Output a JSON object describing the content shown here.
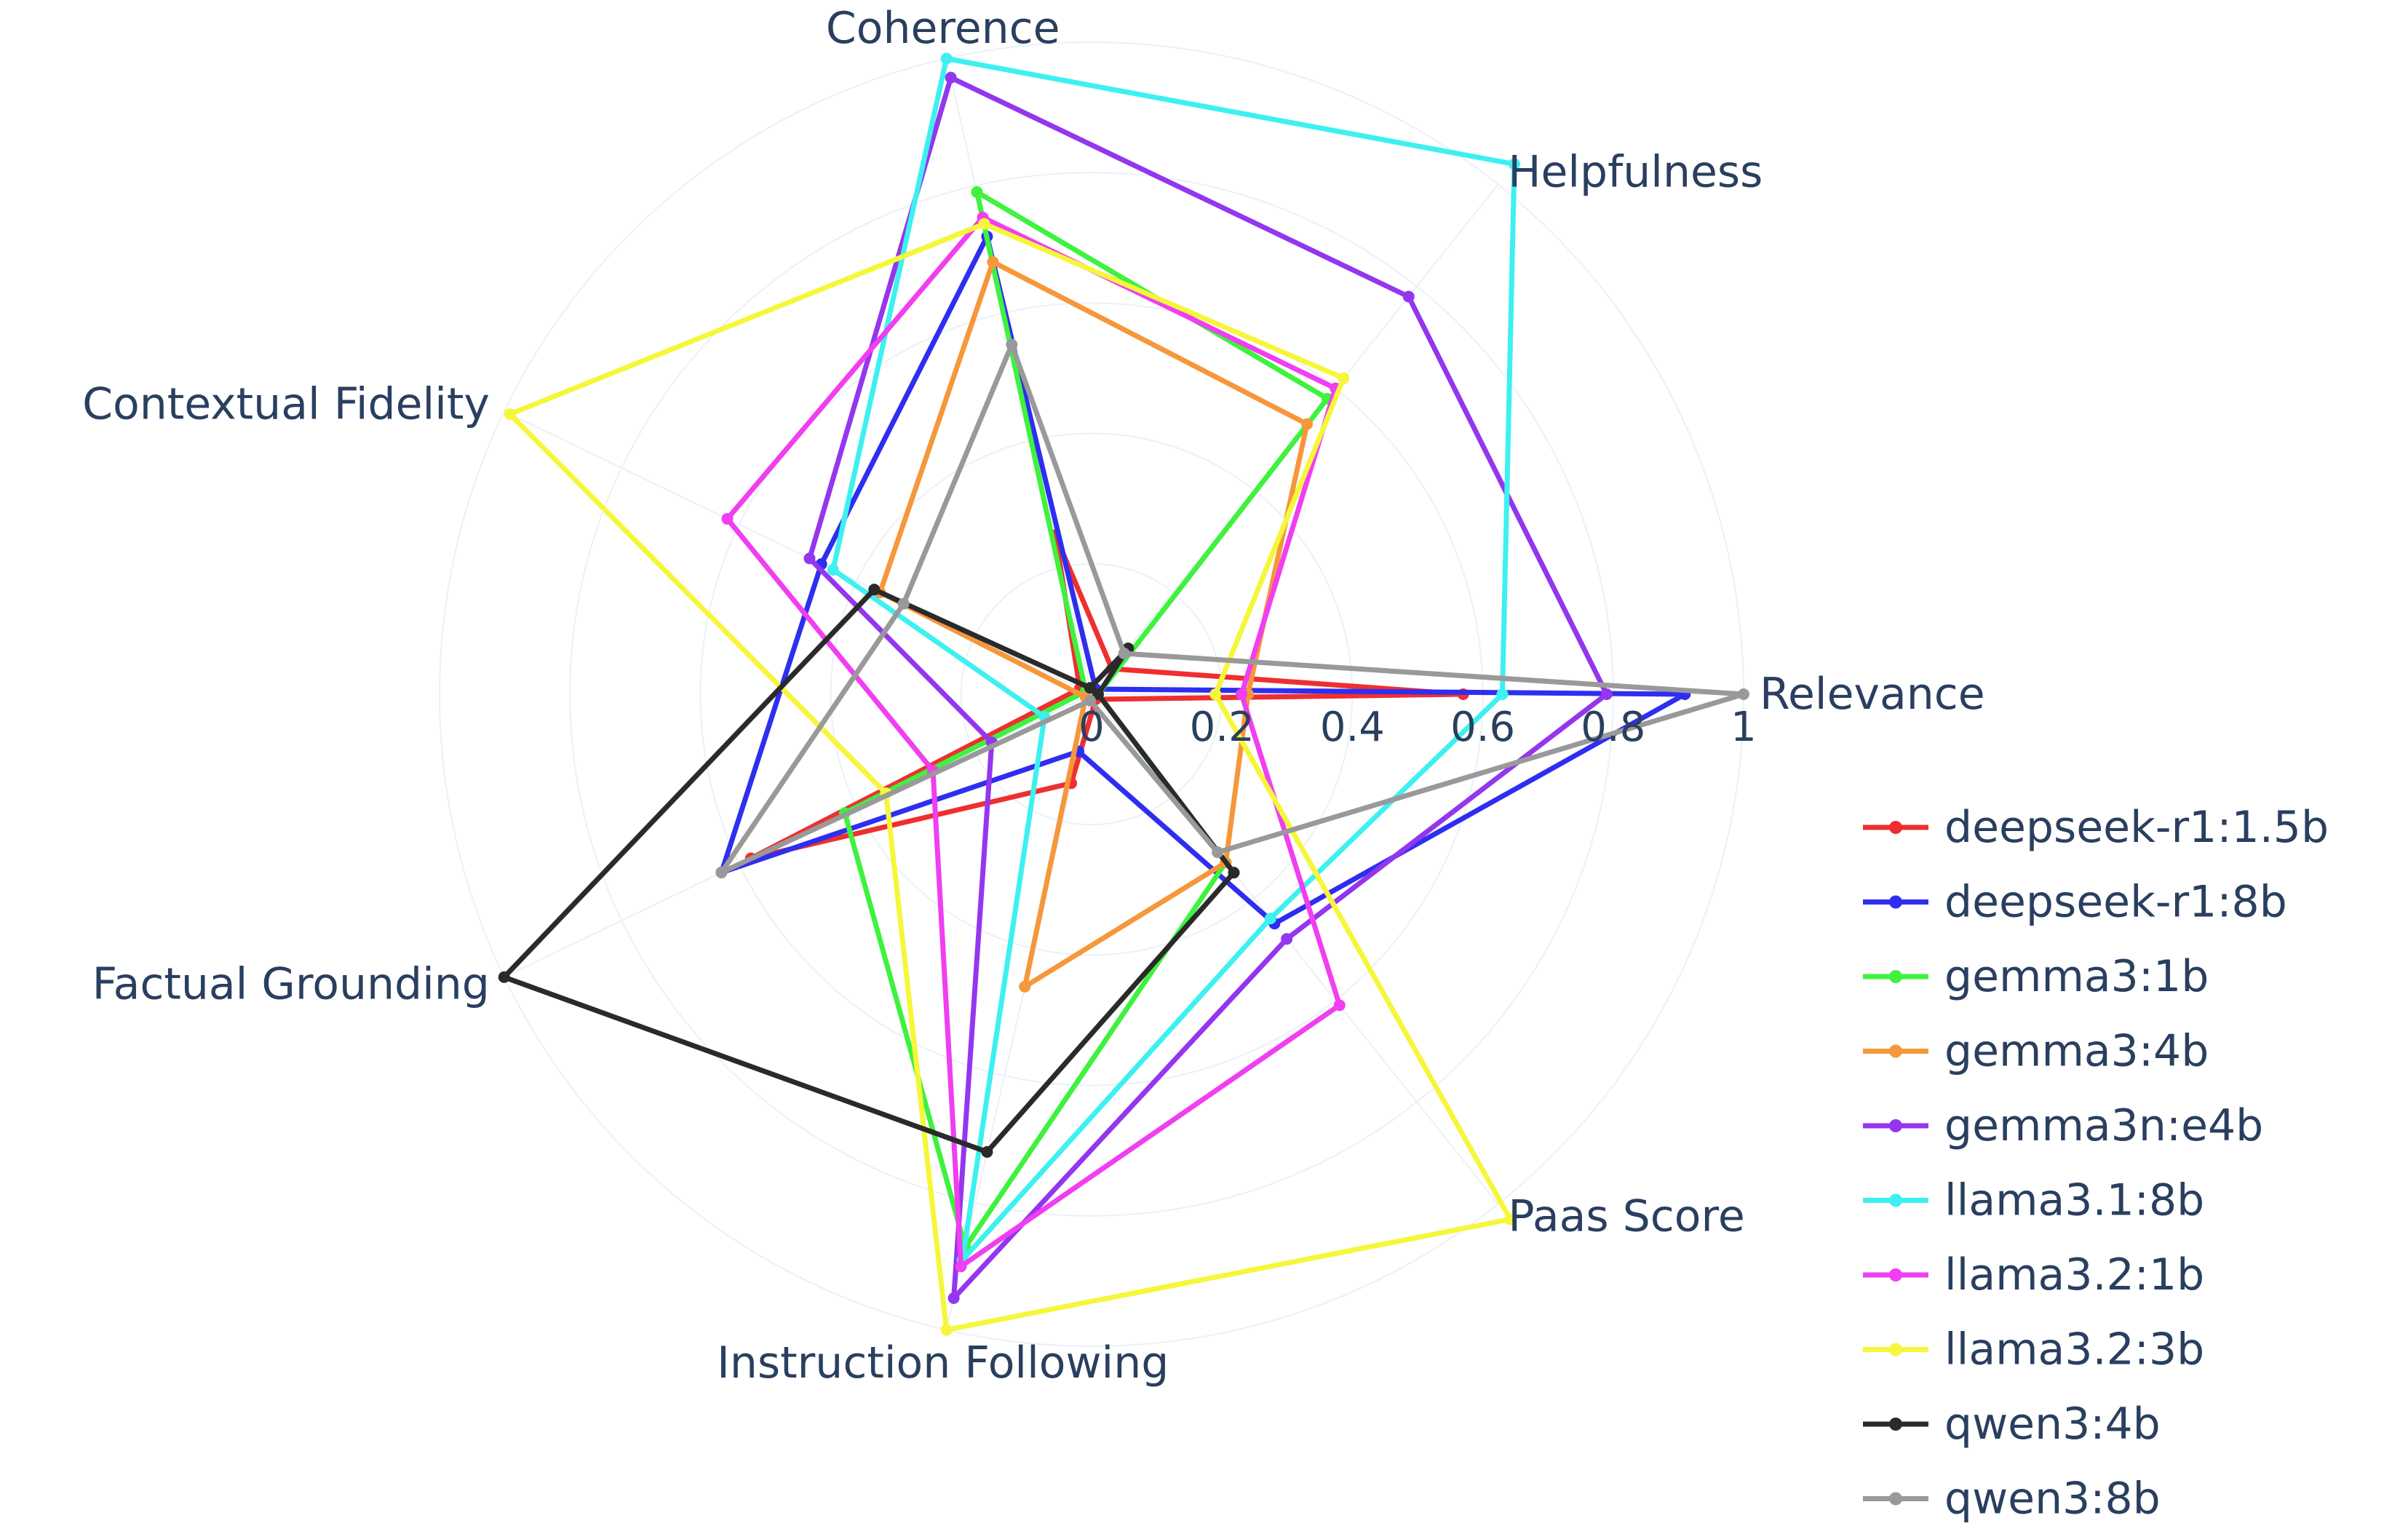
{
  "chart_data": {
    "type": "radar",
    "title": "",
    "radial_range": [
      0,
      1
    ],
    "radial_ticks": [
      0,
      0.2,
      0.4,
      0.6,
      0.8,
      1
    ],
    "radial_tick_labels": [
      "0",
      "0.2",
      "0.4",
      "0.6",
      "0.8",
      "1"
    ],
    "axes": [
      "Relevance",
      "Helpfulness",
      "Coherence",
      "Contextual Fidelity",
      "Factual Grounding",
      "Instruction Following",
      "Paas Score"
    ],
    "legend_position": "right",
    "grid": true,
    "series": [
      {
        "name": "deepseek-r1:1.5b",
        "color": "#ef2f2f",
        "values": [
          0.57,
          0.05,
          0.25,
          0.02,
          0.58,
          0.14,
          0.01
        ]
      },
      {
        "name": "deepseek-r1:8b",
        "color": "#2e2ef0",
        "values": [
          0.91,
          0.01,
          0.72,
          0.46,
          0.63,
          0.09,
          0.45
        ]
      },
      {
        "name": "gemma3:1b",
        "color": "#3ef23e",
        "values": [
          0.01,
          0.58,
          0.79,
          0.01,
          0.42,
          0.87,
          0.33
        ]
      },
      {
        "name": "gemma3:4b",
        "color": "#f5973a",
        "values": [
          0.24,
          0.53,
          0.68,
          0.36,
          0.01,
          0.46,
          0.33
        ]
      },
      {
        "name": "gemma3n:e4b",
        "color": "#9436ee",
        "values": [
          0.79,
          0.78,
          0.97,
          0.48,
          0.17,
          0.95,
          0.48
        ]
      },
      {
        "name": "llama3.1:8b",
        "color": "#3ef0f0",
        "values": [
          0.63,
          1.04,
          1.0,
          0.44,
          0.08,
          0.89,
          0.44
        ]
      },
      {
        "name": "llama3.2:1b",
        "color": "#f03ef0",
        "values": [
          0.23,
          0.6,
          0.75,
          0.62,
          0.27,
          0.9,
          0.61
        ]
      },
      {
        "name": "llama3.2:3b",
        "color": "#f6f63a",
        "values": [
          0.19,
          0.62,
          0.74,
          0.99,
          0.35,
          1.0,
          1.03
        ]
      },
      {
        "name": "qwen3:4b",
        "color": "#2a2a2a",
        "values": [
          0.01,
          0.09,
          0.01,
          0.37,
          1.0,
          0.72,
          0.35
        ]
      },
      {
        "name": "qwen3:8b",
        "color": "#999999",
        "values": [
          1.0,
          0.08,
          0.55,
          0.32,
          0.63,
          0.01,
          0.31
        ]
      }
    ]
  }
}
